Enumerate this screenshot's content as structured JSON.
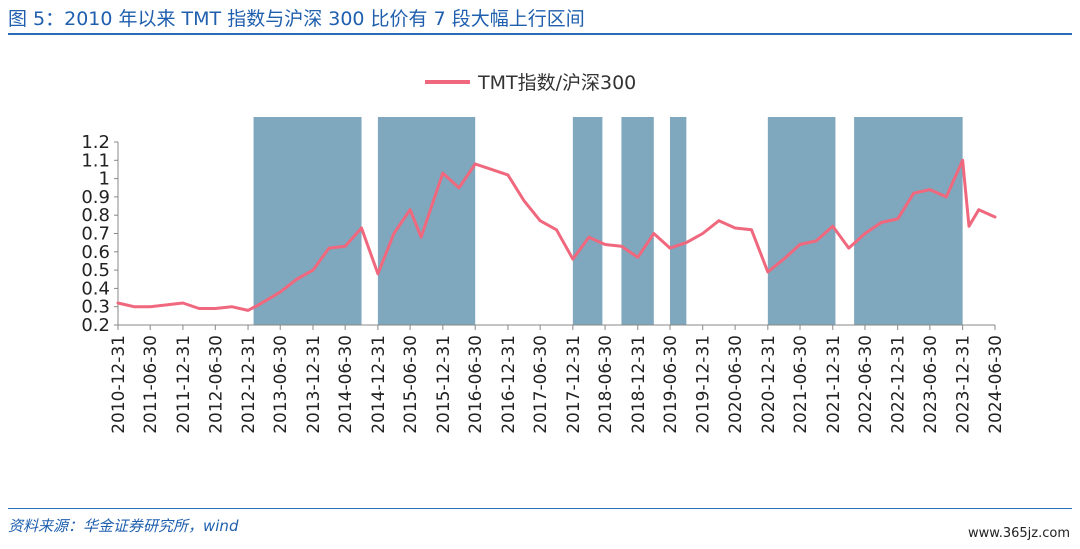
{
  "header": {
    "title": "图 5：2010 年以来 TMT 指数与沪深 300 比价有 7 段大幅上行区间"
  },
  "footer": {
    "source": "资料来源：华金证券研究所，wind",
    "watermark": "www.365jz.com"
  },
  "colors": {
    "line": "#f0687e",
    "band": "#7fa7bd",
    "brand": "#1f5fae"
  },
  "chart_data": {
    "type": "line",
    "legend": {
      "label": "TMT指数/沪深300",
      "placement": "top-center"
    },
    "xlabel": "",
    "ylabel": "",
    "ylim": [
      0.2,
      1.2
    ],
    "yticks": [
      "0.2",
      "0.3",
      "0.4",
      "0.5",
      "0.6",
      "0.7",
      "0.8",
      "0.9",
      "1",
      "1.1",
      "1.2"
    ],
    "xticks": [
      "2010-12-31",
      "2011-06-30",
      "2011-12-31",
      "2012-06-30",
      "2012-12-31",
      "2013-06-30",
      "2013-12-31",
      "2014-06-30",
      "2014-12-31",
      "2015-06-30",
      "2015-12-31",
      "2016-06-30",
      "2016-12-31",
      "2017-06-30",
      "2017-12-31",
      "2018-06-30",
      "2018-12-31",
      "2019-06-30",
      "2019-12-31",
      "2020-06-30",
      "2020-12-31",
      "2021-06-30",
      "2021-12-31",
      "2022-06-30",
      "2022-12-31",
      "2023-06-30",
      "2023-12-31",
      "2024-06-30"
    ],
    "uptrend_intervals": [
      [
        "2013-01-31",
        "2014-09-30"
      ],
      [
        "2014-12-31",
        "2016-06-30"
      ],
      [
        "2017-12-31",
        "2018-06-15"
      ],
      [
        "2018-09-30",
        "2019-03-31"
      ],
      [
        "2019-06-30",
        "2019-09-30"
      ],
      [
        "2020-12-31",
        "2022-01-15"
      ],
      [
        "2022-04-30",
        "2023-12-31"
      ]
    ],
    "series": [
      {
        "name": "TMT指数/沪深300",
        "points": [
          [
            "2010-12-31",
            0.32
          ],
          [
            "2011-03-31",
            0.3
          ],
          [
            "2011-06-30",
            0.3
          ],
          [
            "2011-09-30",
            0.31
          ],
          [
            "2011-12-31",
            0.32
          ],
          [
            "2012-03-31",
            0.29
          ],
          [
            "2012-06-30",
            0.29
          ],
          [
            "2012-09-30",
            0.3
          ],
          [
            "2012-12-31",
            0.28
          ],
          [
            "2013-02-28",
            0.31
          ],
          [
            "2013-06-30",
            0.38
          ],
          [
            "2013-09-30",
            0.45
          ],
          [
            "2013-12-31",
            0.5
          ],
          [
            "2014-03-31",
            0.62
          ],
          [
            "2014-06-30",
            0.63
          ],
          [
            "2014-09-30",
            0.73
          ],
          [
            "2014-12-31",
            0.48
          ],
          [
            "2015-03-31",
            0.7
          ],
          [
            "2015-06-30",
            0.83
          ],
          [
            "2015-08-31",
            0.68
          ],
          [
            "2015-12-31",
            1.03
          ],
          [
            "2016-03-31",
            0.95
          ],
          [
            "2016-06-30",
            1.08
          ],
          [
            "2016-09-30",
            1.05
          ],
          [
            "2016-12-31",
            1.02
          ],
          [
            "2017-03-31",
            0.88
          ],
          [
            "2017-06-30",
            0.77
          ],
          [
            "2017-09-30",
            0.72
          ],
          [
            "2017-12-31",
            0.56
          ],
          [
            "2018-03-31",
            0.68
          ],
          [
            "2018-06-30",
            0.64
          ],
          [
            "2018-09-30",
            0.63
          ],
          [
            "2018-12-31",
            0.57
          ],
          [
            "2019-03-31",
            0.7
          ],
          [
            "2019-06-30",
            0.62
          ],
          [
            "2019-09-30",
            0.65
          ],
          [
            "2019-12-31",
            0.7
          ],
          [
            "2020-03-31",
            0.77
          ],
          [
            "2020-06-30",
            0.73
          ],
          [
            "2020-09-30",
            0.72
          ],
          [
            "2020-12-31",
            0.49
          ],
          [
            "2021-03-31",
            0.56
          ],
          [
            "2021-06-30",
            0.64
          ],
          [
            "2021-09-30",
            0.66
          ],
          [
            "2021-12-31",
            0.74
          ],
          [
            "2022-03-31",
            0.62
          ],
          [
            "2022-06-30",
            0.7
          ],
          [
            "2022-09-30",
            0.76
          ],
          [
            "2022-12-31",
            0.78
          ],
          [
            "2023-03-31",
            0.92
          ],
          [
            "2023-06-30",
            0.94
          ],
          [
            "2023-09-30",
            0.9
          ],
          [
            "2023-12-31",
            1.1
          ],
          [
            "2024-02-05",
            0.74
          ],
          [
            "2024-03-31",
            0.83
          ],
          [
            "2024-06-30",
            0.79
          ]
        ]
      }
    ]
  }
}
